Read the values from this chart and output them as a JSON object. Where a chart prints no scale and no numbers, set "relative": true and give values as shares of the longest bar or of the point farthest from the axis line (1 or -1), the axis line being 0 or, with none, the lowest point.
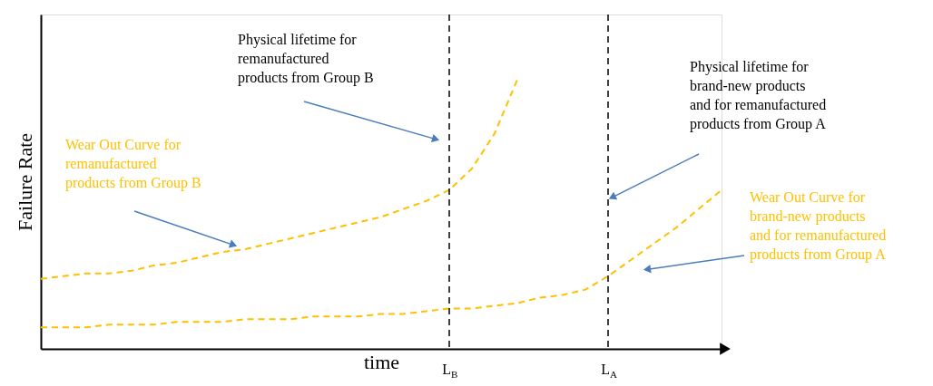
{
  "chart_data": {
    "type": "line",
    "relative": true,
    "xlabel": "time",
    "ylabel": "Failure Rate",
    "line_style": "dashed",
    "categories": [
      null,
      null,
      null,
      null,
      null,
      null,
      null,
      null,
      null,
      null,
      null,
      null,
      null,
      null,
      null,
      null,
      null,
      null,
      "L$_{B}$",
      null,
      null,
      null,
      null,
      null,
      null,
      "L$_{A}$",
      null,
      null,
      null,
      null,
      null
    ],
    "series": [
      {
        "color": "#ffc000",
        "values": [
          0.26,
          0.27,
          0.28,
          0.28,
          0.29,
          0.31,
          0.32,
          0.34,
          0.36,
          0.37,
          0.39,
          0.41,
          0.43,
          0.45,
          0.47,
          0.49,
          0.52,
          0.55,
          0.59,
          0.67,
          0.8,
          1,
          null,
          null,
          null,
          null,
          null,
          null,
          null,
          null,
          null
        ]
      },
      {
        "color": "#ffc000",
        "values": [
          0.08,
          0.08,
          0.08,
          0.09,
          0.09,
          0.09,
          0.1,
          0.1,
          0.1,
          0.11,
          0.11,
          0.11,
          0.12,
          0.12,
          0.12,
          0.13,
          0.13,
          0.14,
          0.15,
          0.15,
          0.16,
          0.17,
          0.19,
          0.2,
          0.22,
          0.27,
          0.33,
          0.39,
          0.45,
          0.52,
          0.59
        ]
      }
    ],
    "ref_lines": [
      {
        "axis": "x",
        "value": "L$_{B}$",
        "color": "#000000",
        "line_style": "dashed"
      },
      {
        "axis": "x",
        "value": "L$_{A}$",
        "color": "#000000",
        "line_style": "dashed"
      }
    ],
    "annotations": [
      "Physical lifetime for remanufactured products from Group B",
      "Physical lifetime for brand-new products and for remanufactured products from Group A",
      "Wear Out Curve for remanufactured products from Group B",
      "Wear Out Curve for brand-new products and for remanufactured products from Group A"
    ]
  }
}
